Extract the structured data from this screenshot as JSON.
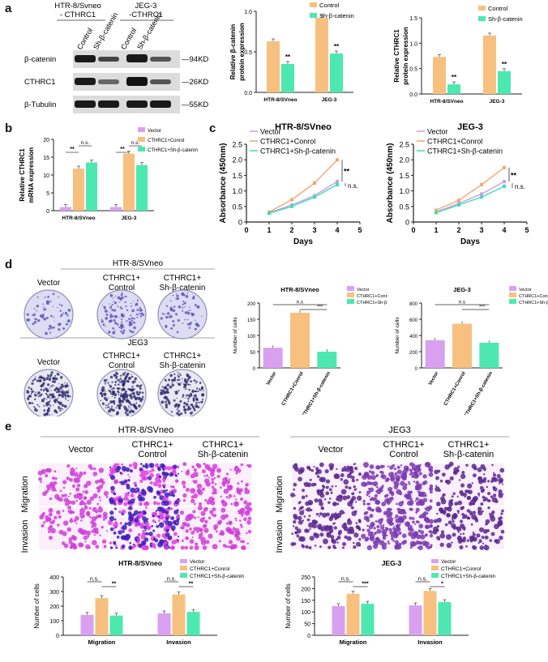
{
  "panel_labels": [
    "a",
    "b",
    "c",
    "d",
    "e"
  ],
  "colors": {
    "control": "#F7C07F",
    "sh": "#4DE8B0",
    "vector": "#D9A0F0",
    "vector_line": "#C8A0E0",
    "control_line": "#F0A870",
    "sh_line": "#3EDCB8",
    "purple": "#6E2FB0",
    "magenta": "#D03AD8",
    "blot": "#1a1a1a"
  },
  "blot": {
    "group1": "HTR-8/Svneo\n- CTHRC1",
    "group1_line1": "HTR-8/Svneo",
    "group1_line2": "- CTHRC1",
    "group2_line1": "JEG-3",
    "group2_line2": "-CTHRC1",
    "lane_labels": [
      "Control",
      "Sh-β-catenin",
      "Control",
      "Sh-β-catenin"
    ],
    "rows": [
      {
        "name": "β-catenin",
        "kd": "—94KD"
      },
      {
        "name": "CTHRC1",
        "kd": "—26KD"
      },
      {
        "name": "β-Tubulin",
        "kd": "—55KD"
      }
    ]
  },
  "chart_data": [
    {
      "id": "a_bcat",
      "type": "bar",
      "title": "",
      "ylabel": "Relative β-catenin\nprotein expression",
      "ylabel_lines": [
        "Relative β-catenin",
        "protein expression"
      ],
      "categories": [
        "HTR-8/SVneo",
        "JEG-3"
      ],
      "ylim": [
        0,
        1.0
      ],
      "yticks": [
        "0.0",
        "0.5",
        "1.0"
      ],
      "yticks_values": [
        0,
        0.5,
        1.0
      ],
      "legend": [
        "Control",
        "Sh-β-catenin"
      ],
      "series": [
        {
          "name": "Control",
          "values": [
            0.63,
            0.92
          ]
        },
        {
          "name": "Sh-β-catenin",
          "values": [
            0.35,
            0.48
          ]
        }
      ],
      "sig": [
        "**",
        "**"
      ]
    },
    {
      "id": "a_cthrc1",
      "type": "bar",
      "ylabel_lines": [
        "Relative CTHRC1",
        "protein expression"
      ],
      "categories": [
        "HTR-8/SVneo",
        "JEG-3"
      ],
      "ylim": [
        0,
        1.5
      ],
      "yticks": [
        "0.0",
        "0.5",
        "1.0",
        "1.5"
      ],
      "yticks_values": [
        0,
        0.5,
        1.0,
        1.5
      ],
      "legend": [
        "Control",
        "Sh-β-catenin"
      ],
      "series": [
        {
          "name": "Control",
          "values": [
            0.73,
            1.15
          ]
        },
        {
          "name": "Sh-β-catenin",
          "values": [
            0.19,
            0.45
          ]
        }
      ],
      "sig": [
        "**",
        "**"
      ]
    },
    {
      "id": "b_mrna",
      "type": "bar",
      "ylabel_lines": [
        "Relative CTHRC1",
        "mRNA expression"
      ],
      "categories": [
        "HTR-8/SVneo",
        "JEG-3"
      ],
      "ylim": [
        0,
        20
      ],
      "yticks": [
        "0",
        "5",
        "10",
        "15",
        "20"
      ],
      "yticks_values": [
        0,
        5,
        10,
        15,
        20
      ],
      "legend": [
        "Vector",
        "CTHRC1+Conrol",
        "CTHRC1+Sh-β-catenin"
      ],
      "series": [
        {
          "name": "Vector",
          "values": [
            1.0,
            1.0
          ]
        },
        {
          "name": "CTHRC1+Conrol",
          "values": [
            11.8,
            16.0
          ]
        },
        {
          "name": "CTHRC1+Sh-β-catenin",
          "values": [
            13.5,
            12.8
          ]
        }
      ],
      "sig": [
        "**",
        "n.s.",
        "**",
        "n.s."
      ]
    },
    {
      "id": "c_htr",
      "type": "line",
      "title": "HTR-8/SVneo",
      "xlabel": "Days",
      "ylabel": "Absorbance (450nm)",
      "x": [
        1,
        2,
        3,
        4
      ],
      "xlim": [
        0,
        5
      ],
      "xticks": [
        "0",
        "1",
        "2",
        "3",
        "4",
        "5"
      ],
      "ylim": [
        0,
        2.5
      ],
      "yticks": [
        "0",
        "0.5",
        "1.0",
        "1.5",
        "2.0",
        "2.5"
      ],
      "legend": [
        "Vector",
        "CTHRC1+Conrol",
        "CTHRC1+Sh-β-catenin"
      ],
      "series": [
        {
          "name": "Vector",
          "values": [
            0.3,
            0.55,
            0.85,
            1.3
          ]
        },
        {
          "name": "CTHRC1+Conrol",
          "values": [
            0.32,
            0.72,
            1.25,
            2.0
          ]
        },
        {
          "name": "CTHRC1+Sh-β-catenin",
          "values": [
            0.28,
            0.5,
            0.8,
            1.2
          ]
        }
      ],
      "sig": [
        "**",
        "n.s."
      ]
    },
    {
      "id": "c_jeg",
      "type": "line",
      "title": "JEG-3",
      "xlabel": "Days",
      "ylabel": "Absorbance (450nm)",
      "x": [
        1,
        2,
        3,
        4
      ],
      "xlim": [
        0,
        5
      ],
      "xticks": [
        "0",
        "1",
        "2",
        "3",
        "4",
        "5"
      ],
      "ylim": [
        0,
        2.5
      ],
      "yticks": [
        "0",
        "0.5",
        "1.0",
        "1.5",
        "2.0",
        "2.5"
      ],
      "legend": [
        "Vector",
        "CTHRC1+Conrol",
        "CTHRC1+Sh-β-catenin"
      ],
      "series": [
        {
          "name": "Vector",
          "values": [
            0.32,
            0.6,
            0.9,
            1.3
          ]
        },
        {
          "name": "CTHRC1+Conrol",
          "values": [
            0.38,
            0.7,
            1.2,
            1.75
          ]
        },
        {
          "name": "CTHRC1+Sh-β-catenin",
          "values": [
            0.3,
            0.55,
            0.8,
            1.15
          ]
        }
      ],
      "sig": [
        "**",
        "n.s."
      ]
    },
    {
      "id": "d_htr",
      "type": "bar",
      "title": "HTR-8/SVneo",
      "ylabel": "Number of cells",
      "categories": [
        "Vector",
        "CTHRC1+Conrol",
        "CTHRC1+Sh-β-catenin"
      ],
      "ylim": [
        0,
        200
      ],
      "yticks": [
        "0",
        "50",
        "100",
        "150",
        "200"
      ],
      "legend": [
        "Vector",
        "CTHRC1+Conrol",
        "CTHRC1+Sh-β-catenin"
      ],
      "values": [
        62,
        170,
        50
      ],
      "sig": [
        "n.s",
        "***"
      ]
    },
    {
      "id": "d_jeg",
      "type": "bar",
      "title": "JEG-3",
      "ylabel": "Number of cells",
      "categories": [
        "Vector",
        "CTHRC1+Conrol",
        "CTHRC1+Sh-β-catenin"
      ],
      "ylim": [
        0,
        800
      ],
      "yticks": [
        "0",
        "200",
        "400",
        "600",
        "800"
      ],
      "legend": [
        "Vector",
        "CTHRC1+Conrol",
        "CTHRC1+Sh-β-catenin"
      ],
      "values": [
        340,
        545,
        310
      ],
      "sig": [
        "n.s",
        "***"
      ]
    },
    {
      "id": "e_htr",
      "type": "bar",
      "title": "HTR-8/SVneo",
      "ylabel": "Number of cells",
      "categories": [
        "Migration",
        "Invasion"
      ],
      "ylim": [
        0,
        400
      ],
      "yticks": [
        "0",
        "100",
        "200",
        "300",
        "400"
      ],
      "legend": [
        "Vector",
        "CTHRC1+Conrol",
        "CTHRC1+Sh-β-catenin"
      ],
      "series": [
        {
          "name": "Vector",
          "values": [
            140,
            150
          ]
        },
        {
          "name": "CTHRC1+Conrol",
          "values": [
            255,
            280
          ]
        },
        {
          "name": "CTHRC1+Sh-β-catenin",
          "values": [
            135,
            160
          ]
        }
      ],
      "sig": [
        "n.s.",
        "**",
        "n.s.",
        "**"
      ]
    },
    {
      "id": "e_jeg",
      "type": "bar",
      "title": "JEG-3",
      "ylabel": "Number of cells",
      "categories": [
        "Migration",
        "Invasion"
      ],
      "ylim": [
        0,
        250
      ],
      "yticks": [
        "0",
        "50",
        "100",
        "150",
        "200",
        "250"
      ],
      "legend": [
        "Vector",
        "CTHRC1+Conrol",
        "CTHRC1+Sh-β-catenin"
      ],
      "series": [
        {
          "name": "Vector",
          "values": [
            125,
            128
          ]
        },
        {
          "name": "CTHRC1+Conrol",
          "values": [
            178,
            190
          ]
        },
        {
          "name": "CTHRC1+Sh-β-catenin",
          "values": [
            135,
            142
          ]
        }
      ],
      "sig": [
        "n.s.",
        "***",
        "n.s.",
        "*"
      ]
    }
  ],
  "colony": {
    "htr_title": "HTR-8/SVneo",
    "jeg_title": "JEG3",
    "col_labels": [
      "Vector",
      "CTHRC1+\nControl",
      "CTHRC1+\nSh-β-catenin"
    ],
    "col1": "Vector",
    "col2_line1": "CTHRC1+",
    "col2_line2": "Control",
    "col3_line1": "CTHRC1+",
    "col3_line2": "Sh-β-catenin"
  },
  "transwell": {
    "htr_title": "HTR-8/SVneo",
    "jeg_title": "JEG3",
    "col1": "Vector",
    "col2_line1": "CTHRC1+",
    "col2_line2": "Control",
    "col3_line1": "CTHRC1+",
    "col3_line2": "Sh-β-catenin",
    "row_labels": [
      "Migration",
      "Invasion"
    ],
    "density": [
      [
        0.35,
        0.85,
        0.45
      ],
      [
        0.4,
        0.9,
        0.5
      ]
    ],
    "jeg_density": [
      [
        0.45,
        0.85,
        0.4
      ],
      [
        0.55,
        0.95,
        0.5
      ]
    ]
  }
}
